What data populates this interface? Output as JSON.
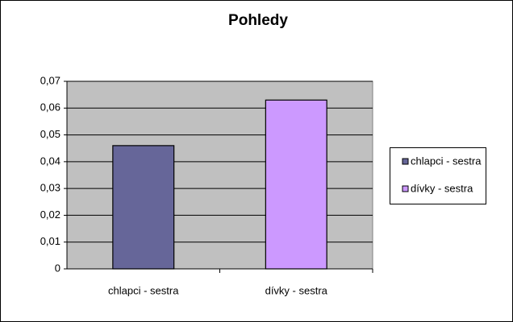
{
  "chart_data": {
    "type": "bar",
    "title": "Pohledy",
    "categories": [
      "chlapci - sestra",
      "dívky - sestra"
    ],
    "values": [
      0.046,
      0.063
    ],
    "colors": [
      "#666699",
      "#cc99ff"
    ],
    "ylim": [
      0,
      0.07
    ],
    "yticks": [
      0,
      {
        "value": 0.01,
        "label": "0,01"
      },
      {
        "value": 0.02,
        "label": "0,02"
      },
      {
        "value": 0.03,
        "label": "0,03"
      },
      {
        "value": 0.04,
        "label": "0,04"
      },
      {
        "value": 0.05,
        "label": "0,05"
      },
      {
        "value": 0.06,
        "label": "0,06"
      },
      {
        "value": 0.07,
        "label": "0,07"
      }
    ],
    "grid": true,
    "plot_background": "#c0c0c0",
    "legend": "right"
  }
}
